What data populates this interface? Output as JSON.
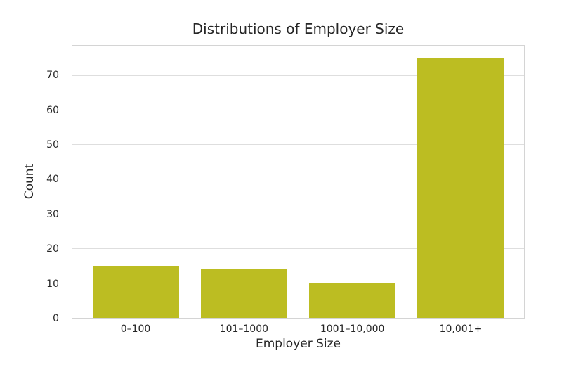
{
  "chart_data": {
    "type": "bar",
    "title": "Distributions of Employer Size",
    "xlabel": "Employer Size",
    "ylabel": "Count",
    "categories": [
      "0–100",
      "101–1000",
      "1001–10,000",
      "10,001+"
    ],
    "values": [
      15,
      14,
      10,
      75
    ],
    "yticks": [
      0,
      10,
      20,
      30,
      40,
      50,
      60,
      70
    ],
    "ylim": [
      0,
      78.75
    ],
    "xlim": [
      -0.59,
      3.59
    ],
    "bar_width": 0.8,
    "bar_color": "#bcbd22",
    "grid": true,
    "grid_color": "#dedede",
    "axes_edge_color": "#d4d4d4",
    "text_color": "#262626",
    "background": "#ffffff",
    "legend": null
  }
}
